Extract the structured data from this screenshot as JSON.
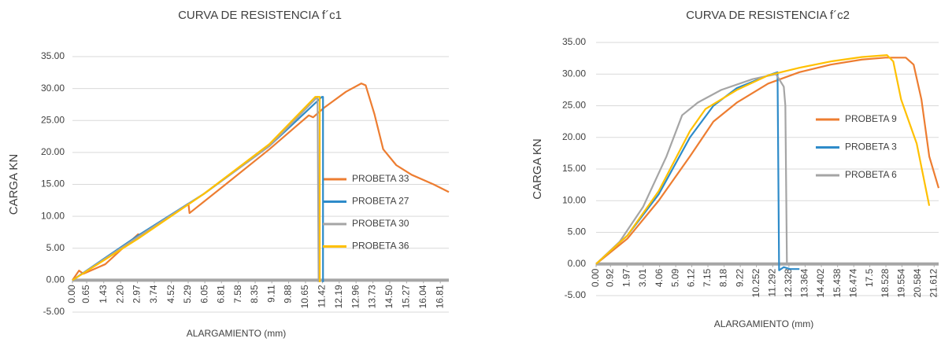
{
  "chart_data": [
    {
      "type": "line",
      "title": "CURVA DE RESISTENCIA f´c1",
      "x_label": "ALARGAMIENTO (mm)",
      "y_label": "CARGA KN",
      "xlim": [
        0,
        17.2
      ],
      "ylim": [
        -5,
        35
      ],
      "grid": true,
      "legend": "right",
      "xticks": [
        {
          "value": 0,
          "label": "0.00"
        },
        0.65,
        1.43,
        {
          "value": 2.2,
          "label": "2.20"
        },
        2.97,
        3.74,
        4.52,
        5.29,
        6.05,
        6.81,
        7.58,
        8.35,
        9.11,
        9.88,
        10.65,
        11.42,
        12.19,
        12.96,
        13.73,
        {
          "value": 14.5,
          "label": "14.50"
        },
        15.27,
        16.04,
        16.81
      ],
      "yticks": [
        {
          "value": -5,
          "label": "-5.00"
        },
        {
          "value": 0,
          "label": "0.00"
        },
        {
          "value": 5,
          "label": "5.00"
        },
        {
          "value": 10,
          "label": "10.00"
        },
        {
          "value": 15,
          "label": "15.00"
        },
        {
          "value": 20,
          "label": "20.00"
        },
        {
          "value": 25,
          "label": "25.00"
        },
        {
          "value": 30,
          "label": "30.00"
        },
        {
          "value": 35,
          "label": "35.00"
        }
      ],
      "series": [
        {
          "name": "PROBETA 33",
          "color": "#ed7d31",
          "x": [
            0,
            0.3,
            0.5,
            1.5,
            3.0,
            3.1,
            5.3,
            5.35,
            7,
            9,
            10.8,
            11,
            11.5,
            12.5,
            13.2,
            13.4,
            13.8,
            14.2,
            14.8,
            15.5,
            16.5,
            17.2
          ],
          "values": [
            0,
            1.5,
            1.0,
            2.5,
            7.2,
            7.0,
            12,
            10.5,
            15,
            20.5,
            25.8,
            25.5,
            27,
            29.5,
            30.8,
            30.5,
            26,
            20.5,
            18,
            16.5,
            15,
            13.8
          ]
        },
        {
          "name": "PROBETA 27",
          "color": "#2e8bc9",
          "x": [
            0,
            3,
            6,
            9,
            11.4,
            11.45,
            11.45
          ],
          "values": [
            0,
            7,
            13.5,
            21,
            28.7,
            28.7,
            -0.3
          ]
        },
        {
          "name": "PROBETA 30",
          "color": "#a5a5a5",
          "x": [
            0,
            3,
            6,
            9,
            11.2,
            11.25
          ],
          "values": [
            0,
            6.8,
            13.5,
            21,
            28.7,
            -0.3
          ]
        },
        {
          "name": "PROBETA 36",
          "color": "#ffc000",
          "x": [
            0,
            3,
            6,
            9,
            11.1,
            11.3,
            11.3
          ],
          "values": [
            0,
            6.5,
            13.5,
            21.3,
            28.7,
            28.7,
            -0.3
          ]
        }
      ]
    },
    {
      "type": "line",
      "title": "CURVA DE RESISTENCIA f´c2",
      "x_label": "ALARGAMIENTO (mm)",
      "y_label": "CARGA KN",
      "xlim": [
        0,
        21.9
      ],
      "ylim": [
        -5,
        35
      ],
      "grid": true,
      "legend": "right",
      "xticks": [
        {
          "value": 0,
          "label": "0.00"
        },
        0.92,
        1.97,
        3.01,
        4.06,
        5.09,
        6.12,
        7.15,
        8.18,
        9.22,
        10.252,
        11.292,
        12.328,
        13.364,
        14.402,
        15.438,
        16.474,
        17.5,
        18.528,
        19.554,
        20.584,
        21.612
      ],
      "yticks": [
        {
          "value": -5,
          "label": "-5.00"
        },
        {
          "value": 0,
          "label": "0.00"
        },
        {
          "value": 5,
          "label": "5.00"
        },
        {
          "value": 10,
          "label": "10.00"
        },
        {
          "value": 15,
          "label": "15.00"
        },
        {
          "value": 20,
          "label": "20.00"
        },
        {
          "value": 25,
          "label": "25.00"
        },
        {
          "value": 30,
          "label": "30.00"
        },
        {
          "value": 35,
          "label": "35.00"
        }
      ],
      "series": [
        {
          "name": "PROBETA 9",
          "color": "#ed7d31",
          "x": [
            0,
            2,
            4,
            6,
            7.5,
            9,
            11,
            13,
            15,
            17,
            18.5,
            19.8,
            20.3,
            20.8,
            21.3,
            21.9
          ],
          "values": [
            0,
            4,
            10,
            17,
            22.5,
            25.5,
            28.5,
            30.3,
            31.5,
            32.3,
            32.6,
            32.6,
            31.5,
            26,
            17,
            12
          ]
        },
        {
          "name": "PROBETA 3",
          "color": "#2e8bc9",
          "x": [
            0,
            2,
            4,
            6,
            7.5,
            9,
            11,
            11.6,
            11.7,
            12,
            12.4,
            13
          ],
          "values": [
            0,
            4.5,
            11,
            20,
            25,
            27.8,
            29.8,
            30.3,
            -1,
            -0.5,
            -0.8,
            -0.8
          ]
        },
        {
          "name": "PROBETA 6",
          "color": "#a5a5a5",
          "x": [
            0,
            1.5,
            3,
            4.5,
            5.5,
            6.5,
            8,
            10,
            11.5,
            12,
            12.1,
            12.2
          ],
          "values": [
            0,
            3.5,
            9,
            17,
            23.5,
            25.5,
            27.5,
            29.2,
            30,
            28,
            25,
            0
          ]
        },
        {
          "color": "#ffc000",
          "x": [
            0,
            2,
            4,
            6,
            7,
            9,
            11,
            13,
            15,
            17,
            18.6,
            19,
            19.5,
            20.5,
            21.3
          ],
          "values": [
            0,
            4.5,
            11.5,
            21,
            24.5,
            27.5,
            29.8,
            31,
            32,
            32.7,
            33,
            32,
            26,
            19,
            9.2
          ]
        }
      ]
    }
  ]
}
